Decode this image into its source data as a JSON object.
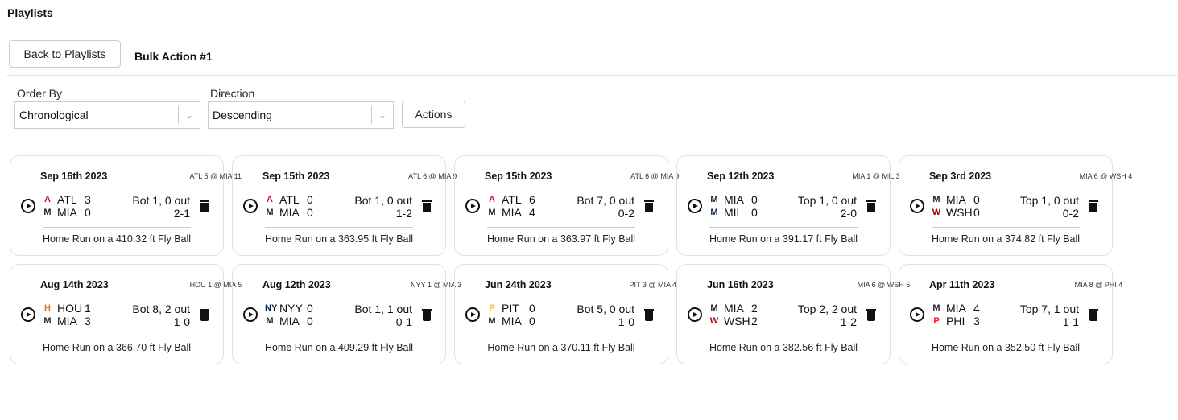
{
  "header": {
    "title": "Playlists",
    "back_label": "Back to Playlists",
    "playlist_name": "Bulk Action #1"
  },
  "controls": {
    "order_label": "Order By",
    "order_value": "Chronological",
    "direction_label": "Direction",
    "direction_value": "Descending",
    "actions_label": "Actions"
  },
  "team_colors": {
    "ATL": "#ce1141",
    "MIA": "#222222",
    "MIL": "#12284b",
    "WSH": "#ab0003",
    "HOU": "#eb6e1f",
    "NYY": "#0c2340",
    "PIT": "#fdb827",
    "PHI": "#e81828"
  },
  "cards": [
    {
      "date": "Sep 16th 2023",
      "final": "ATL 5 @ MIA 11",
      "away": "ATL",
      "away_score": "3",
      "home": "MIA",
      "home_score": "0",
      "inning": "Bot 1, 0 out",
      "count": "2-1",
      "desc": "Home Run on a 410.32 ft Fly Ball"
    },
    {
      "date": "Sep 15th 2023",
      "final": "ATL 6 @ MIA 9",
      "away": "ATL",
      "away_score": "0",
      "home": "MIA",
      "home_score": "0",
      "inning": "Bot 1, 0 out",
      "count": "1-2",
      "desc": "Home Run on a 363.95 ft Fly Ball"
    },
    {
      "date": "Sep 15th 2023",
      "final": "ATL 6 @ MIA 9",
      "away": "ATL",
      "away_score": "6",
      "home": "MIA",
      "home_score": "4",
      "inning": "Bot 7, 0 out",
      "count": "0-2",
      "desc": "Home Run on a 363.97 ft Fly Ball"
    },
    {
      "date": "Sep 12th 2023",
      "final": "MIA 1 @ MIL 3",
      "away": "MIA",
      "away_score": "0",
      "home": "MIL",
      "home_score": "0",
      "inning": "Top 1, 0 out",
      "count": "2-0",
      "desc": "Home Run on a 391.17 ft Fly Ball"
    },
    {
      "date": "Sep 3rd 2023",
      "final": "MIA 6 @ WSH 4",
      "away": "MIA",
      "away_score": "0",
      "home": "WSH",
      "home_score": "0",
      "inning": "Top 1, 0 out",
      "count": "0-2",
      "desc": "Home Run on a 374.82 ft Fly Ball"
    },
    {
      "date": "Aug 14th 2023",
      "final": "HOU 1 @ MIA 5",
      "away": "HOU",
      "away_score": "1",
      "home": "MIA",
      "home_score": "3",
      "inning": "Bot 8, 2 out",
      "count": "1-0",
      "desc": "Home Run on a 366.70 ft Fly Ball"
    },
    {
      "date": "Aug 12th 2023",
      "final": "NYY 1 @ MIA 3",
      "away": "NYY",
      "away_score": "0",
      "home": "MIA",
      "home_score": "0",
      "inning": "Bot 1, 1 out",
      "count": "0-1",
      "desc": "Home Run on a 409.29 ft Fly Ball"
    },
    {
      "date": "Jun 24th 2023",
      "final": "PIT 3 @ MIA 4",
      "away": "PIT",
      "away_score": "0",
      "home": "MIA",
      "home_score": "0",
      "inning": "Bot 5, 0 out",
      "count": "1-0",
      "desc": "Home Run on a 370.11 ft Fly Ball"
    },
    {
      "date": "Jun 16th 2023",
      "final": "MIA 6 @ WSH 5",
      "away": "MIA",
      "away_score": "2",
      "home": "WSH",
      "home_score": "2",
      "inning": "Top 2, 2 out",
      "count": "1-2",
      "desc": "Home Run on a 382.56 ft Fly Ball"
    },
    {
      "date": "Apr 11th 2023",
      "final": "MIA 8 @ PHI 4",
      "away": "MIA",
      "away_score": "4",
      "home": "PHI",
      "home_score": "3",
      "inning": "Top 7, 1 out",
      "count": "1-1",
      "desc": "Home Run on a 352.50 ft Fly Ball"
    }
  ]
}
